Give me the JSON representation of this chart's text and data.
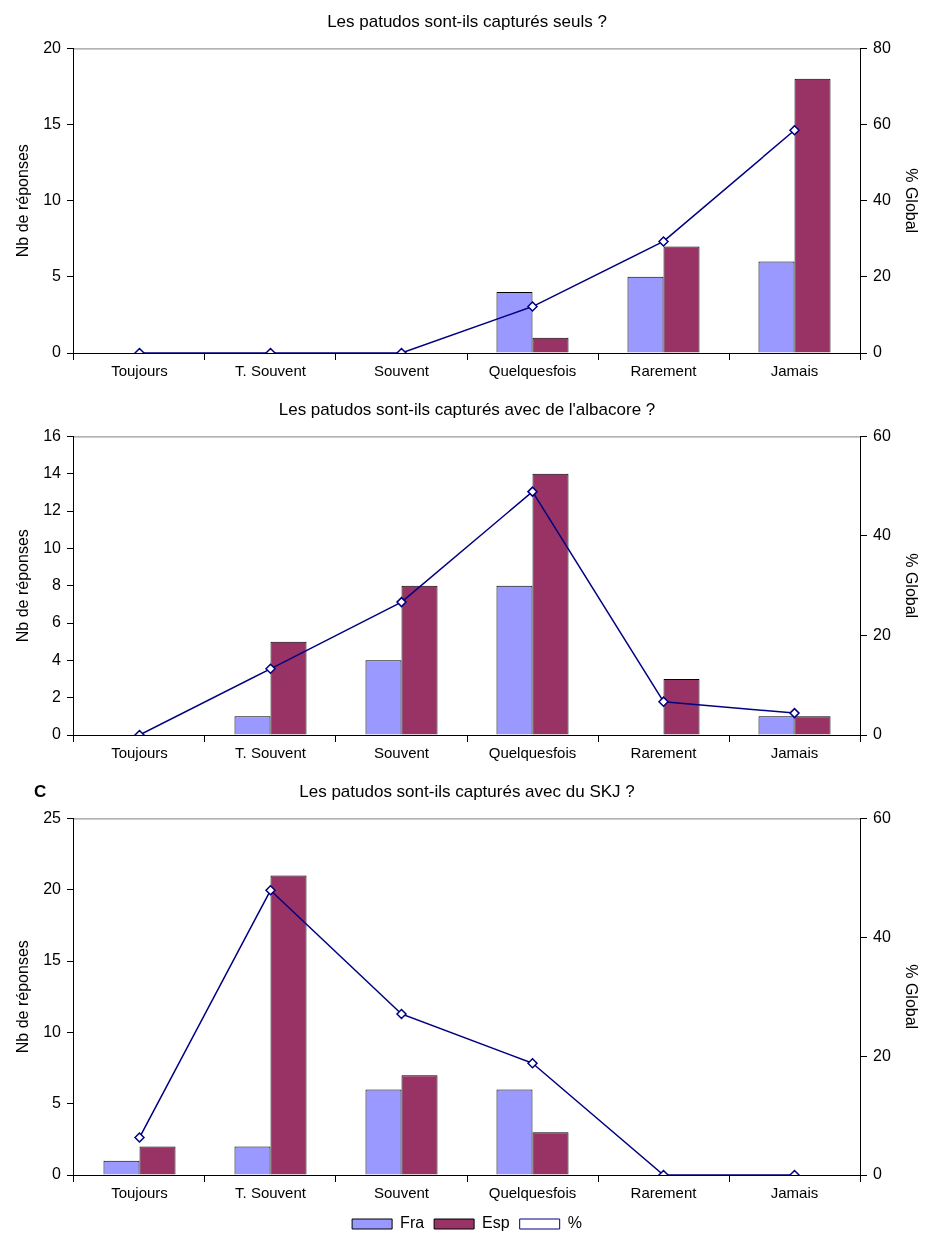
{
  "chart_data": [
    {
      "type": "bar",
      "title": "Les patudos sont-ils capturés seuls ?",
      "categories": [
        "Toujours",
        "T. Souvent",
        "Souvent",
        "Quelquesfois",
        "Rarement",
        "Jamais"
      ],
      "ylabel": "Nb de réponses",
      "y2label": "% Global",
      "ylim": [
        0,
        20
      ],
      "yticks": [
        0,
        5,
        10,
        15,
        20
      ],
      "y2lim": [
        0,
        80
      ],
      "y2ticks": [
        0,
        20,
        40,
        60,
        80
      ],
      "grid": false,
      "legend": false,
      "series": [
        {
          "color": "#9999ff",
          "values": [
            0,
            0,
            0,
            4,
            5,
            6
          ]
        },
        {
          "color": "#993366",
          "values": [
            0,
            0,
            0,
            1,
            7,
            18
          ]
        },
        {
          "type": "line",
          "axis": "y2",
          "marker": "diamond",
          "color": "#000080",
          "values": [
            0,
            0,
            0,
            12.2,
            29.3,
            58.5
          ]
        }
      ]
    },
    {
      "type": "bar",
      "title": "Les patudos sont-ils capturés avec de l'albacore ?",
      "categories": [
        "Toujours",
        "T. Souvent",
        "Souvent",
        "Quelquesfois",
        "Rarement",
        "Jamais"
      ],
      "ylabel": "Nb de réponses",
      "y2label": "% Global",
      "ylim": [
        0,
        16
      ],
      "yticks": [
        0,
        2,
        4,
        6,
        8,
        10,
        12,
        14,
        16
      ],
      "y2lim": [
        0,
        60
      ],
      "y2ticks": [
        0,
        20,
        40,
        60
      ],
      "grid": false,
      "legend": false,
      "series": [
        {
          "color": "#9999ff",
          "values": [
            0,
            1,
            4,
            8,
            0,
            1
          ]
        },
        {
          "color": "#993366",
          "values": [
            0,
            5,
            8,
            14,
            3,
            1
          ]
        },
        {
          "type": "line",
          "axis": "y2",
          "marker": "diamond",
          "color": "#000080",
          "values": [
            0,
            13.3,
            26.7,
            48.9,
            6.7,
            4.4
          ]
        }
      ]
    },
    {
      "type": "bar",
      "title": "Les patudos sont-ils capturés avec du SKJ ?",
      "annotations": [
        "C"
      ],
      "categories": [
        "Toujours",
        "T. Souvent",
        "Souvent",
        "Quelquesfois",
        "Rarement",
        "Jamais"
      ],
      "ylabel": "Nb de réponses",
      "y2label": "% Global",
      "ylim": [
        0,
        25
      ],
      "yticks": [
        0,
        5,
        10,
        15,
        20,
        25
      ],
      "y2lim": [
        0,
        60
      ],
      "y2ticks": [
        0,
        20,
        40,
        60
      ],
      "grid": false,
      "legend": "bottom",
      "series": [
        {
          "name": "Fra",
          "color": "#9999ff",
          "values": [
            1,
            2,
            6,
            6,
            0,
            0
          ]
        },
        {
          "name": "Esp",
          "color": "#993366",
          "values": [
            2,
            21,
            7,
            3,
            0,
            0
          ]
        },
        {
          "name": "%",
          "type": "line",
          "axis": "y2",
          "marker": "diamond",
          "color": "#000080",
          "values": [
            6.3,
            47.9,
            27.1,
            18.8,
            0,
            0
          ]
        }
      ]
    }
  ]
}
